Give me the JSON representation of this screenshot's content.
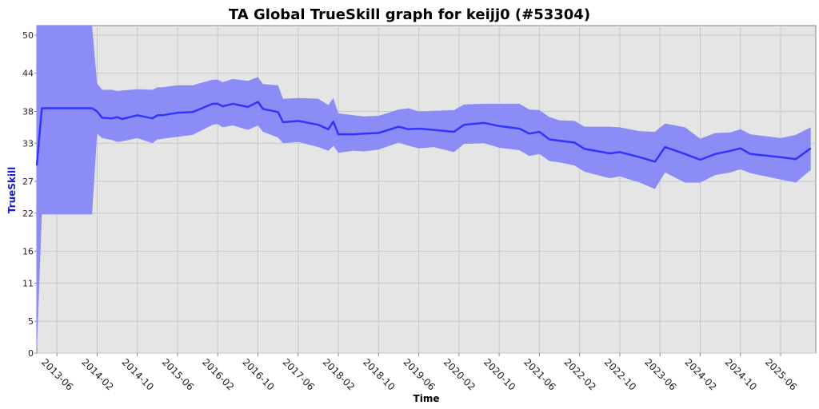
{
  "chart_data": {
    "type": "line",
    "title": "TA Global TrueSkill graph for keijj0 (#53304)",
    "xlabel": "Time",
    "ylabel": "TrueSkill",
    "x_ticks": [
      "2013-06",
      "2014-02",
      "2014-10",
      "2015-06",
      "2016-02",
      "2016-10",
      "2017-06",
      "2018-02",
      "2018-10",
      "2019-06",
      "2020-02",
      "2020-10",
      "2021-06",
      "2022-02",
      "2022-10",
      "2023-06",
      "2024-02",
      "2024-10",
      "2025-06"
    ],
    "y_ticks": [
      0,
      5,
      11,
      16,
      22,
      27,
      33,
      38,
      44,
      50
    ],
    "ylim": [
      0,
      51.5
    ],
    "grid": true,
    "colors": {
      "line": "#3333ff",
      "band": "#8c8cf7",
      "plot_bg": "#e5e5e5",
      "grid": "#c8c8c8"
    },
    "series": [
      {
        "x": [
          "2013-02",
          "2013-03",
          "2013-06",
          "2013-10",
          "2014-01",
          "2014-02",
          "2014-03",
          "2014-05",
          "2014-06",
          "2014-07",
          "2014-10",
          "2015-01",
          "2015-02",
          "2015-03",
          "2015-06",
          "2015-09",
          "2016-01",
          "2016-02",
          "2016-03",
          "2016-05",
          "2016-08",
          "2016-10",
          "2016-11",
          "2017-02",
          "2017-03",
          "2017-06",
          "2017-10",
          "2017-12",
          "2018-01",
          "2018-02",
          "2018-05",
          "2018-07",
          "2018-10",
          "2019-02",
          "2019-04",
          "2019-06",
          "2019-09",
          "2020-01",
          "2020-03",
          "2020-07",
          "2020-10",
          "2021-02",
          "2021-04",
          "2021-06",
          "2021-08",
          "2021-10",
          "2022-01",
          "2022-03",
          "2022-08",
          "2022-10",
          "2023-02",
          "2023-05",
          "2023-07",
          "2023-11",
          "2024-02",
          "2024-05",
          "2024-08",
          "2024-10",
          "2024-12",
          "2025-06",
          "2025-09",
          "2025-12"
        ],
        "values": [
          29.5,
          38.5,
          38.5,
          38.5,
          38.5,
          38.0,
          37.0,
          36.9,
          37.1,
          36.8,
          37.4,
          36.9,
          37.4,
          37.4,
          37.8,
          37.9,
          39.2,
          39.2,
          38.8,
          39.2,
          38.7,
          39.5,
          38.4,
          37.9,
          36.3,
          36.5,
          35.9,
          35.2,
          36.4,
          34.4,
          34.4,
          34.5,
          34.6,
          35.6,
          35.2,
          35.3,
          35.1,
          34.8,
          35.9,
          36.2,
          35.7,
          35.3,
          34.5,
          34.8,
          33.6,
          33.4,
          33.1,
          32.1,
          31.4,
          31.6,
          30.8,
          30.1,
          32.4,
          31.3,
          30.4,
          31.3,
          31.8,
          32.2,
          31.3,
          30.8,
          30.5,
          32.2
        ],
        "lower": [
          0,
          21.8,
          21.8,
          21.8,
          21.8,
          34.5,
          33.8,
          33.5,
          33.2,
          33.3,
          33.8,
          33.0,
          33.6,
          33.7,
          34.0,
          34.3,
          35.9,
          36.0,
          35.5,
          35.8,
          35.1,
          35.8,
          34.8,
          33.9,
          33.0,
          33.2,
          32.4,
          31.8,
          32.6,
          31.5,
          31.8,
          31.7,
          32.0,
          33.1,
          32.6,
          32.2,
          32.4,
          31.6,
          32.9,
          33.0,
          32.3,
          31.9,
          31.0,
          31.3,
          30.2,
          30.0,
          29.5,
          28.5,
          27.5,
          27.8,
          26.8,
          25.8,
          28.4,
          26.8,
          26.8,
          28.0,
          28.4,
          28.9,
          28.3,
          27.3,
          26.8,
          28.8
        ],
        "upper": [
          51.5,
          51.5,
          51.5,
          51.5,
          51.5,
          42.4,
          41.4,
          41.4,
          41.2,
          41.3,
          41.5,
          41.4,
          41.8,
          41.8,
          42.1,
          42.1,
          43.0,
          43.0,
          42.6,
          43.1,
          42.8,
          43.4,
          42.3,
          42.1,
          40.0,
          40.1,
          40.0,
          39.0,
          40.1,
          37.7,
          37.4,
          37.2,
          37.3,
          38.3,
          38.5,
          38.0,
          38.1,
          38.2,
          39.1,
          39.2,
          39.2,
          39.2,
          38.3,
          38.2,
          37.1,
          36.6,
          36.5,
          35.6,
          35.6,
          35.5,
          34.9,
          34.8,
          36.1,
          35.5,
          33.7,
          34.6,
          34.7,
          35.2,
          34.4,
          33.8,
          34.3,
          35.5
        ]
      }
    ]
  }
}
